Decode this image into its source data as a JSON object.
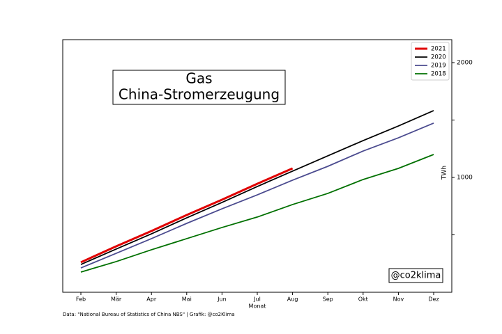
{
  "chart_data": {
    "type": "line",
    "title": "Gas",
    "subtitle": "China-Stromerzeugung",
    "xlabel": "Monat",
    "ylabel": "TWh",
    "annotation": "@co2klima",
    "footer": "Data: \"National Bureau of Statistics of China NBS\" | Grafik: @co2Klima",
    "categories": [
      "Feb",
      "Mär",
      "Apr",
      "Mai",
      "Jun",
      "Jul",
      "Aug",
      "Sep",
      "Okt",
      "Nov",
      "Dez"
    ],
    "series": [
      {
        "name": "2021",
        "color": "#e00000",
        "width": 3,
        "values": [
          261,
          400,
          533,
          673,
          806,
          945,
          1079,
          null,
          null,
          null,
          null
        ]
      },
      {
        "name": "2020",
        "color": "#000000",
        "width": 1.8,
        "values": [
          242,
          376,
          509,
          648,
          782,
          921,
          1055,
          1188,
          1321,
          1448,
          1582
        ]
      },
      {
        "name": "2019",
        "color": "#4b4b8f",
        "width": 1.8,
        "values": [
          212,
          339,
          467,
          600,
          727,
          848,
          976,
          1097,
          1230,
          1345,
          1473
        ]
      },
      {
        "name": "2018",
        "color": "#007000",
        "width": 1.8,
        "values": [
          176,
          267,
          370,
          467,
          564,
          655,
          764,
          861,
          982,
          1079,
          1200
        ]
      }
    ],
    "ylim": [
      0,
      2200
    ],
    "yticks": [
      1000,
      2000
    ],
    "yminor_ticks": [
      500,
      1500
    ],
    "y_axis_side": "right",
    "legend": "upper right"
  }
}
